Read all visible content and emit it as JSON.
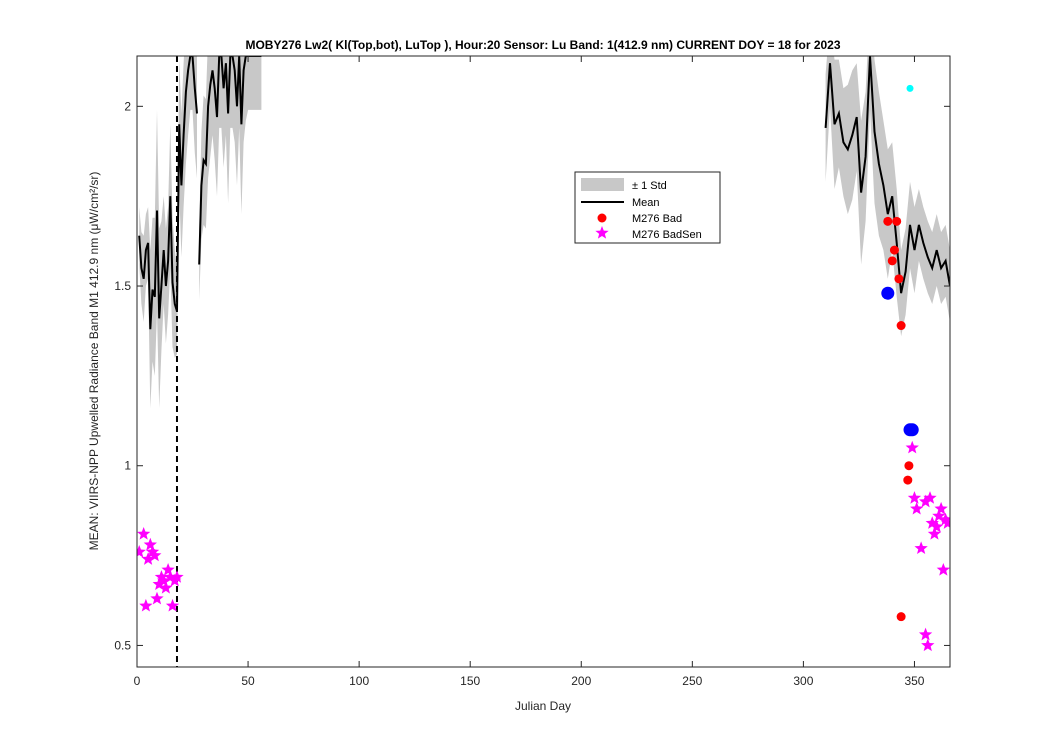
{
  "chart_data": {
    "type": "line",
    "title": "MOBY276   Lw2( Kl(Top,bot), LuTop ),   Hour:20 Sensor: Lu Band: 1(412.9 nm)   CURRENT DOY = 18 for 2023",
    "xlabel": "Julian Day",
    "ylabel": "MEAN: VIIRS-NPP Upwelled Radiance Band M1 412.9 nm (μW/cm²/sr)",
    "xlim": [
      0,
      366
    ],
    "ylim": [
      0.44,
      2.14
    ],
    "x_ticks": [
      0,
      50,
      100,
      150,
      200,
      250,
      300,
      350
    ],
    "x_tick_labels": [
      "0",
      "50",
      "100",
      "150",
      "200",
      "250",
      "300",
      "350"
    ],
    "y_ticks": [
      0.5,
      1,
      1.5,
      2
    ],
    "y_tick_labels": [
      "0.5",
      "1",
      "1.5",
      "2"
    ],
    "grid": false,
    "legend": {
      "position": "upper-center-right",
      "entries": [
        "± 1 Std",
        "Mean",
        "M276 Bad",
        "M276 BadSen"
      ]
    },
    "current_doy": 18,
    "colors": {
      "std_band": "#c8c8c8",
      "mean": "#000000",
      "bad": "#ff0000",
      "badsen": "#ff00ff",
      "blue": "#0000ff",
      "cyan": "#00ffff"
    },
    "series": [
      {
        "name": "Mean",
        "segments": [
          {
            "x": [
              1,
              2,
              3,
              4,
              5,
              6,
              7,
              8,
              9,
              10,
              11,
              12,
              13,
              14,
              15,
              16,
              17,
              18,
              19,
              20,
              21,
              22,
              23,
              24,
              25,
              26,
              27
            ],
            "y": [
              1.64,
              1.55,
              1.52,
              1.6,
              1.62,
              1.38,
              1.49,
              1.47,
              1.71,
              1.41,
              1.5,
              1.6,
              1.5,
              1.57,
              1.75,
              1.51,
              1.45,
              1.43,
              1.95,
              1.78,
              1.92,
              2.04,
              2.1,
              2.14,
              2.14,
              2.05,
              1.98
            ],
            "std": [
              0.08,
              0.1,
              0.12,
              0.1,
              0.1,
              0.22,
              0.2,
              0.22,
              0.28,
              0.25,
              0.18,
              0.15,
              0.16,
              0.15,
              0.2,
              0.18,
              0.15,
              0.12,
              0.18,
              0.2,
              0.2,
              0.2,
              0.18,
              0.15,
              0.15,
              0.18,
              0.18
            ]
          },
          {
            "x": [
              28,
              29,
              30,
              31,
              32,
              33,
              34,
              35,
              36,
              37,
              38,
              39,
              40,
              41,
              42,
              43,
              44,
              45,
              46,
              47,
              48,
              49,
              50,
              51,
              52,
              53,
              54,
              55,
              56
            ],
            "y": [
              1.56,
              1.78,
              1.85,
              1.84,
              2.0,
              2.06,
              2.1,
              2.05,
              1.97,
              2.14,
              2.14,
              2.05,
              2.12,
              1.98,
              2.14,
              2.14,
              2.1,
              2.0,
              2.14,
              1.95,
              2.1,
              2.14,
              2.14,
              2.14,
              2.14,
              2.14,
              2.14,
              2.14,
              2.14
            ],
            "std": [
              0.1,
              0.15,
              0.18,
              0.18,
              0.2,
              0.2,
              0.18,
              0.2,
              0.22,
              0.2,
              0.2,
              0.22,
              0.2,
              0.25,
              0.2,
              0.2,
              0.2,
              0.22,
              0.2,
              0.25,
              0.2,
              0.18,
              0.15,
              0.15,
              0.15,
              0.15,
              0.15,
              0.15,
              0.15
            ]
          },
          {
            "x": [
              310,
              312,
              314,
              316,
              318,
              320,
              322,
              324,
              326,
              328,
              330,
              332,
              334,
              336,
              338,
              340,
              342,
              344,
              346,
              348,
              350,
              352,
              354,
              356,
              358,
              360,
              362,
              364,
              366
            ],
            "y": [
              1.94,
              2.12,
              1.95,
              1.98,
              1.9,
              1.88,
              1.92,
              1.97,
              1.76,
              1.86,
              2.14,
              1.93,
              1.84,
              1.78,
              1.7,
              1.75,
              1.62,
              1.48,
              1.54,
              1.67,
              1.6,
              1.67,
              1.62,
              1.58,
              1.55,
              1.6,
              1.55,
              1.57,
              1.5
            ],
            "std": [
              0.15,
              0.12,
              0.18,
              0.15,
              0.15,
              0.18,
              0.18,
              0.15,
              0.2,
              0.18,
              0.15,
              0.2,
              0.2,
              0.18,
              0.18,
              0.15,
              0.15,
              0.12,
              0.12,
              0.12,
              0.12,
              0.1,
              0.1,
              0.1,
              0.1,
              0.1,
              0.1,
              0.1,
              0.1
            ]
          }
        ]
      },
      {
        "name": "M276 Bad",
        "x": [
          338,
          340,
          341,
          342,
          343,
          344,
          347,
          347.5,
          344
        ],
        "y": [
          1.68,
          1.57,
          1.6,
          1.68,
          1.52,
          1.39,
          0.96,
          1.0,
          0.58
        ]
      },
      {
        "name": "M276 BadSen",
        "x": [
          1,
          3,
          4,
          5,
          6,
          7,
          8,
          9,
          10,
          11,
          12,
          13,
          14,
          15,
          16,
          17,
          18,
          349,
          350,
          351,
          353,
          355,
          357,
          358,
          359,
          360,
          361,
          362,
          363,
          364,
          365,
          355,
          356
        ],
        "y": [
          0.76,
          0.81,
          0.61,
          0.74,
          0.78,
          0.76,
          0.75,
          0.63,
          0.67,
          0.69,
          0.68,
          0.66,
          0.71,
          0.69,
          0.61,
          0.68,
          0.69,
          1.05,
          0.91,
          0.88,
          0.77,
          0.9,
          0.91,
          0.84,
          0.81,
          0.83,
          0.86,
          0.88,
          0.71,
          0.85,
          0.84,
          0.53,
          0.5
        ]
      },
      {
        "name": "blue points",
        "x": [
          338,
          348,
          349
        ],
        "y": [
          1.48,
          1.1,
          1.1
        ]
      },
      {
        "name": "cyan points",
        "x": [
          348
        ],
        "y": [
          2.05
        ]
      }
    ]
  }
}
